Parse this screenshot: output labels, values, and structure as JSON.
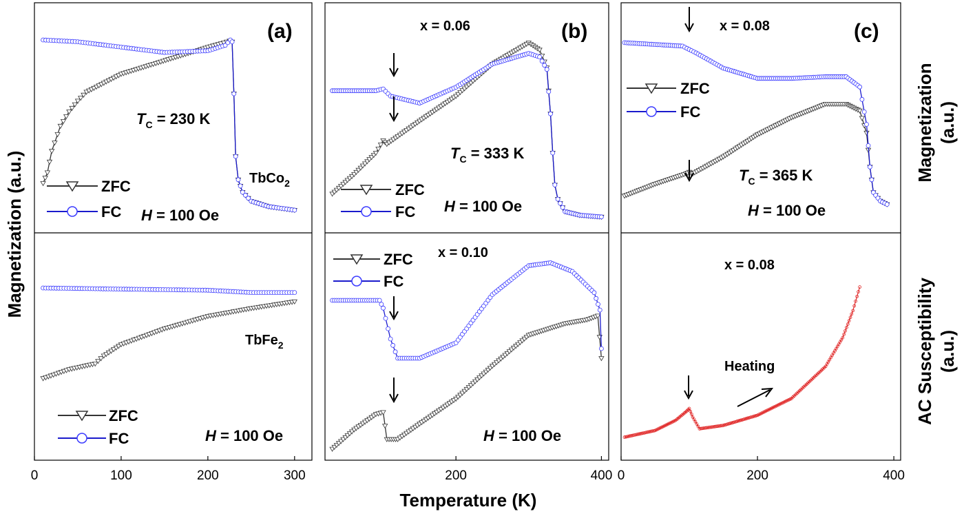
{
  "colors": {
    "zfc": "#333333",
    "fc": "#1a1acc",
    "fc_marker": "#3a3aff",
    "ac": "#dd1111",
    "axis": "#000000"
  },
  "x_axis_label": "Temperature (K)",
  "left_y_label": "Magnetization (a.u.)",
  "right_top_label": {
    "line1": "Magnetization",
    "line2": "(a.u.)"
  },
  "right_bottom_label": {
    "line1": "AC Susceptibility",
    "line2": "(a.u.)"
  },
  "chart_data": [
    {
      "id": "a_top",
      "type": "line",
      "panel_label": "(a)",
      "composition": "",
      "tc_value": " = 230 K",
      "field_value": " = 100 Oe",
      "compound": {
        "base": "TbCo",
        "sub": "2"
      },
      "legend": [
        "ZFC",
        "FC"
      ],
      "xlim": [
        0,
        320
      ],
      "ylim": [
        0,
        100
      ],
      "xticks": [
        0,
        100,
        200,
        300
      ],
      "series": [
        {
          "name": "ZFC",
          "x": [
            10,
            15,
            20,
            30,
            40,
            50,
            60,
            80,
            100,
            120,
            140,
            160,
            180,
            200,
            215,
            225,
            228,
            230,
            232,
            235,
            240,
            250,
            270,
            300
          ],
          "y": [
            20,
            26,
            38,
            52,
            60,
            66,
            71,
            76,
            81,
            84,
            87,
            90,
            93,
            96,
            98,
            99.5,
            99,
            70,
            35,
            22,
            15,
            10,
            7,
            5
          ]
        },
        {
          "name": "FC",
          "x": [
            10,
            50,
            100,
            150,
            200,
            220,
            226,
            228,
            230,
            232,
            235,
            240,
            250,
            270,
            300
          ],
          "y": [
            100,
            99,
            96,
            93,
            94,
            97,
            100,
            99,
            70,
            35,
            22,
            15,
            10,
            7,
            5
          ]
        }
      ]
    },
    {
      "id": "a_bottom",
      "type": "line",
      "panel_label": "",
      "composition": "",
      "tc_value": "",
      "field_value": " = 100 Oe",
      "compound": {
        "base": "TbFe",
        "sub": "2"
      },
      "legend": [
        "ZFC",
        "FC"
      ],
      "xlim": [
        0,
        320
      ],
      "ylim": [
        0,
        100
      ],
      "xticks": [
        0,
        100,
        200,
        300
      ],
      "series": [
        {
          "name": "ZFC",
          "x": [
            10,
            40,
            70,
            80,
            100,
            150,
            200,
            250,
            300
          ],
          "y": [
            20,
            28,
            33,
            40,
            50,
            64,
            75,
            82,
            88
          ]
        },
        {
          "name": "FC",
          "x": [
            10,
            100,
            200,
            250,
            300
          ],
          "y": [
            100,
            99,
            98,
            96,
            96
          ]
        }
      ]
    },
    {
      "id": "b_top",
      "type": "line",
      "panel_label": "(b)",
      "composition": "x = 0.06",
      "tc_value": " = 333 K",
      "field_value": " = 100 Oe",
      "compound": null,
      "legend": [
        "ZFC",
        "FC"
      ],
      "xlim": [
        20,
        410
      ],
      "ylim": [
        0,
        100
      ],
      "xticks": [
        200,
        400
      ],
      "series": [
        {
          "name": "ZFC",
          "x": [
            30,
            60,
            90,
            100,
            105,
            150,
            200,
            250,
            300,
            315,
            325,
            330,
            333,
            336,
            340,
            350,
            370,
            400
          ],
          "y": [
            15,
            26,
            38,
            45,
            43,
            56,
            70,
            88,
            100,
            96,
            86,
            60,
            38,
            20,
            12,
            5,
            3,
            2
          ]
        },
        {
          "name": "FC",
          "x": [
            30,
            90,
            100,
            110,
            150,
            200,
            250,
            300,
            315,
            325,
            330,
            333,
            336,
            340,
            350,
            370,
            400
          ],
          "y": [
            73,
            73,
            74,
            70,
            66,
            75,
            88,
            94,
            92,
            85,
            60,
            38,
            20,
            12,
            5,
            3,
            2
          ]
        }
      ]
    },
    {
      "id": "b_bottom",
      "type": "line",
      "panel_label": "",
      "composition": "x = 0.10",
      "tc_value": "",
      "field_value": " = 100 Oe",
      "compound": null,
      "legend": [
        "ZFC",
        "FC"
      ],
      "xlim": [
        20,
        410
      ],
      "ylim": [
        0,
        100
      ],
      "xticks": [
        200,
        400
      ],
      "series": [
        {
          "name": "ZFC",
          "x": [
            30,
            60,
            90,
            100,
            105,
            120,
            150,
            200,
            250,
            300,
            350,
            380,
            395,
            400
          ],
          "y": [
            3,
            13,
            21,
            22,
            8,
            8,
            16,
            29,
            46,
            62,
            68,
            70,
            72,
            50
          ]
        },
        {
          "name": "FC",
          "x": [
            30,
            95,
            100,
            110,
            120,
            150,
            200,
            250,
            300,
            330,
            360,
            390,
            398,
            400
          ],
          "y": [
            80,
            80,
            76,
            60,
            50,
            50,
            58,
            83,
            98,
            99.5,
            95,
            84,
            75,
            55
          ]
        }
      ]
    },
    {
      "id": "c_top",
      "type": "line",
      "panel_label": "(c)",
      "composition": "x = 0.08",
      "tc_value": " = 365 K",
      "field_value": " = 100 Oe",
      "compound": null,
      "legend": [
        "ZFC",
        "FC"
      ],
      "xlim": [
        0,
        410
      ],
      "ylim": [
        0,
        100
      ],
      "xticks": [
        0,
        200,
        400
      ],
      "series": [
        {
          "name": "ZFC",
          "x": [
            5,
            50,
            95,
            100,
            105,
            150,
            200,
            250,
            300,
            330,
            350,
            360,
            365,
            370,
            380,
            390
          ],
          "y": [
            8,
            15,
            21,
            22,
            21,
            31,
            44,
            54,
            62,
            62,
            58,
            45,
            25,
            10,
            5,
            3
          ]
        },
        {
          "name": "FC",
          "x": [
            5,
            90,
            100,
            110,
            150,
            200,
            250,
            300,
            330,
            350,
            360,
            365,
            370,
            380,
            390
          ],
          "y": [
            98,
            96,
            94,
            92,
            83,
            77,
            77,
            78,
            78,
            72,
            50,
            25,
            10,
            5,
            3
          ]
        }
      ]
    },
    {
      "id": "c_bottom",
      "type": "line",
      "panel_label": "",
      "composition": "x = 0.08",
      "tc_value": "",
      "field_value": "",
      "compound": null,
      "legend": [],
      "arrow_note": "Heating",
      "xlim": [
        0,
        410
      ],
      "ylim": [
        0,
        100
      ],
      "xticks": [
        0,
        200,
        400
      ],
      "series": [
        {
          "name": "AC",
          "x": [
            5,
            50,
            80,
            95,
            100,
            105,
            115,
            150,
            200,
            250,
            300,
            325,
            340,
            350
          ],
          "y": [
            3,
            7,
            13,
            18,
            20,
            15,
            8,
            10,
            16,
            26,
            45,
            62,
            78,
            92
          ]
        }
      ]
    }
  ]
}
